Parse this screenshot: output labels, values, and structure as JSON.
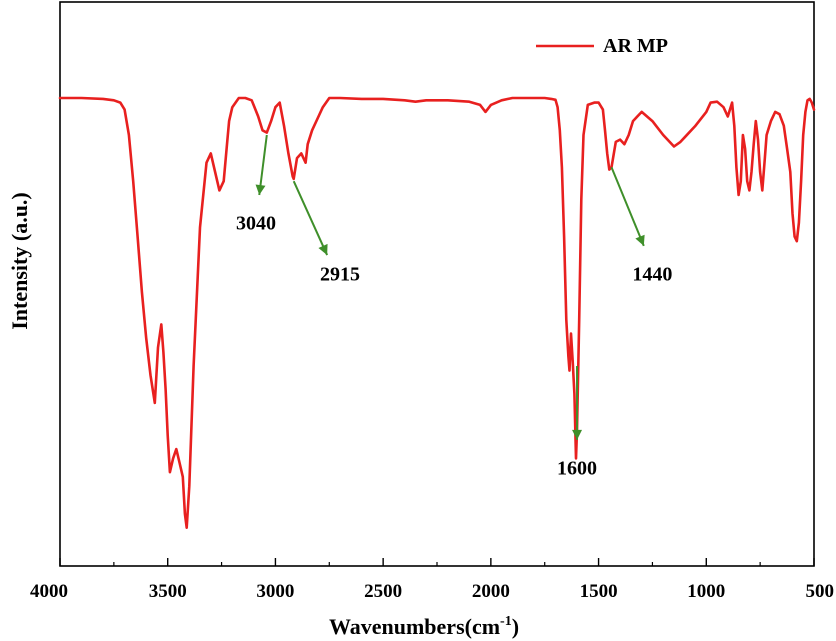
{
  "chart_data": {
    "type": "line",
    "title": "",
    "xlabel": "Wavenumbers(cm",
    "xlabel_superscript": "-1",
    "xlabel_suffix": ")",
    "ylabel": "Intensity (a.u.)",
    "xlim": [
      4000,
      500
    ],
    "ylim": [
      0,
      100
    ],
    "x_reversed": true,
    "y_ticks_shown": false,
    "grid": false,
    "legend_position": "top-right",
    "x_ticks": [
      4000,
      3500,
      3000,
      2500,
      2000,
      1500,
      1000,
      500
    ],
    "x_tick_labels": [
      "4000",
      "3500",
      "3000",
      "2500",
      "2000",
      "1500",
      "1000",
      "500"
    ],
    "series": [
      {
        "name": "AR MP",
        "color": "#e8201f",
        "x": [
          4000,
          3900,
          3800,
          3750,
          3720,
          3700,
          3680,
          3660,
          3640,
          3620,
          3600,
          3580,
          3560,
          3545,
          3530,
          3520,
          3510,
          3500,
          3490,
          3475,
          3460,
          3445,
          3430,
          3420,
          3412,
          3400,
          3380,
          3350,
          3320,
          3300,
          3280,
          3260,
          3240,
          3225,
          3215,
          3200,
          3170,
          3140,
          3110,
          3080,
          3060,
          3040,
          3020,
          3000,
          2980,
          2960,
          2940,
          2920,
          2915,
          2900,
          2880,
          2860,
          2850,
          2830,
          2800,
          2780,
          2750,
          2700,
          2600,
          2500,
          2400,
          2350,
          2300,
          2200,
          2100,
          2050,
          2025,
          2000,
          1950,
          1900,
          1800,
          1750,
          1720,
          1700,
          1690,
          1680,
          1670,
          1660,
          1650,
          1640,
          1635,
          1628,
          1620,
          1612,
          1605,
          1600,
          1590,
          1580,
          1570,
          1550,
          1520,
          1500,
          1480,
          1470,
          1460,
          1450,
          1440,
          1420,
          1400,
          1380,
          1360,
          1340,
          1320,
          1300,
          1250,
          1200,
          1150,
          1120,
          1100,
          1050,
          1000,
          980,
          950,
          920,
          900,
          880,
          870,
          860,
          850,
          840,
          830,
          820,
          810,
          800,
          790,
          780,
          770,
          760,
          750,
          740,
          730,
          720,
          700,
          680,
          660,
          640,
          625,
          610,
          600,
          590,
          580,
          570,
          560,
          550,
          540,
          530,
          520,
          510,
          500
        ],
        "y": [
          100,
          100,
          99.8,
          99.5,
          99,
          97.5,
          92,
          82,
          70,
          58,
          48,
          40,
          34,
          46,
          51,
          45,
          37,
          27,
          19,
          22,
          24,
          21,
          18,
          10,
          7,
          16,
          42,
          72,
          86,
          88,
          84,
          80,
          82,
          90,
          95,
          98,
          100,
          100,
          99.5,
          96,
          93,
          92.5,
          95,
          98,
          99,
          94,
          88,
          83,
          82.5,
          87,
          88,
          86,
          90,
          93,
          96,
          98,
          100,
          100,
          99.8,
          99.8,
          99.5,
          99.2,
          99.5,
          99.5,
          99.2,
          98.5,
          97,
          98.5,
          99.5,
          100,
          100,
          100,
          99.8,
          99.6,
          98,
          93,
          85,
          70,
          52,
          44,
          41,
          49,
          43,
          36,
          22,
          28,
          52,
          78,
          92,
          98.5,
          99,
          99,
          97.5,
          93,
          88,
          84.5,
          85,
          90.5,
          91,
          90,
          92,
          95,
          96,
          97,
          95,
          92,
          89.5,
          90.5,
          91.5,
          94,
          97,
          99,
          99.2,
          98,
          96,
          99,
          94,
          85,
          79,
          82,
          92,
          89,
          82,
          80,
          84,
          90,
          95,
          91,
          84,
          80,
          86,
          92,
          95,
          97,
          96.5,
          94,
          89,
          84,
          75,
          70,
          69,
          73,
          82,
          92,
          97,
          99.5,
          99.8,
          99,
          97.5
        ]
      }
    ],
    "annotations": [
      {
        "label": "3040",
        "color": "#3f8f2a",
        "arrow_from": [
          3040,
          92
        ],
        "arrow_to": [
          3075,
          79
        ],
        "label_at": [
          3090,
          73
        ]
      },
      {
        "label": "2915",
        "color": "#3f8f2a",
        "arrow_from": [
          2915,
          82
        ],
        "arrow_to": [
          2760,
          66
        ],
        "label_at": [
          2700,
          62
        ]
      },
      {
        "label": "1600",
        "color": "#3f8f2a",
        "arrow_from": [
          1600,
          42
        ],
        "arrow_to": [
          1600,
          26
        ],
        "label_at": [
          1600,
          20
        ]
      },
      {
        "label": "1440",
        "color": "#3f8f2a",
        "arrow_from": [
          1440,
          85
        ],
        "arrow_to": [
          1290,
          68
        ],
        "label_at": [
          1250,
          62
        ]
      }
    ]
  }
}
